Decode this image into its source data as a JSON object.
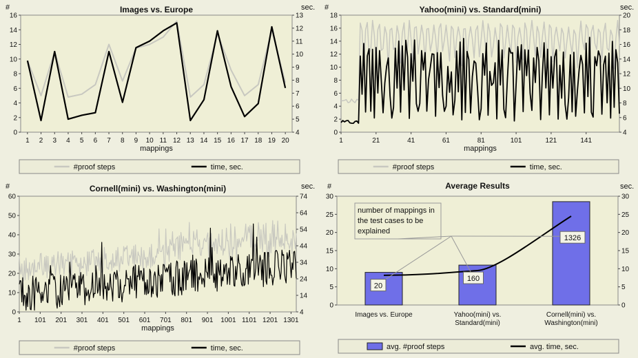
{
  "chart_data": [
    {
      "type": "line",
      "title": "Images vs. Europe",
      "xlabel": "mappings",
      "ylabel_left": "#",
      "ylabel_right": "sec.",
      "x": [
        1,
        2,
        3,
        4,
        5,
        6,
        7,
        8,
        9,
        10,
        11,
        12,
        13,
        14,
        15,
        16,
        17,
        18,
        19,
        20
      ],
      "ylim_left": [
        0,
        16
      ],
      "ylim_right": [
        4,
        13
      ],
      "yticks_left": [
        0,
        2,
        4,
        6,
        8,
        10,
        12,
        14,
        16
      ],
      "yticks_right": [
        4,
        5,
        6,
        7,
        8,
        9,
        10,
        11,
        12,
        13
      ],
      "xticks": [
        "1",
        "2",
        "3",
        "4",
        "5",
        "6",
        "7",
        "8",
        "9",
        "10",
        "11",
        "12",
        "13",
        "14",
        "15",
        "16",
        "17",
        "18",
        "19",
        "20"
      ],
      "series": [
        {
          "name": "#proof steps",
          "axis": "left",
          "color": "#c8c8c0",
          "values": [
            9.8,
            5.0,
            11.0,
            4.8,
            5.2,
            6.5,
            12.0,
            7.0,
            11.5,
            12.0,
            13.0,
            15.2,
            4.8,
            6.5,
            13.5,
            8.5,
            5.0,
            6.5,
            14.0,
            6.8
          ]
        },
        {
          "name": "time, sec.",
          "axis": "right",
          "color": "#000000",
          "values": [
            9.5,
            4.9,
            10.2,
            5.0,
            5.3,
            5.5,
            10.2,
            6.3,
            10.5,
            11.0,
            11.8,
            12.4,
            4.9,
            6.5,
            11.8,
            7.5,
            5.2,
            6.2,
            12.1,
            7.4
          ]
        }
      ],
      "legend": [
        "#proof steps",
        "time, sec."
      ]
    },
    {
      "type": "line",
      "title": "Yahoo(mini) vs. Standard(mini)",
      "xlabel": "mappings",
      "ylabel_left": "#",
      "ylabel_right": "sec.",
      "xlim": [
        1,
        160
      ],
      "ylim_left": [
        0,
        18
      ],
      "ylim_right": [
        4,
        20
      ],
      "yticks_left": [
        0,
        2,
        4,
        6,
        8,
        10,
        12,
        14,
        16,
        18
      ],
      "yticks_right": [
        4,
        6,
        8,
        10,
        12,
        14,
        16,
        18,
        20
      ],
      "xticks": [
        "1",
        "21",
        "41",
        "61",
        "81",
        "101",
        "121",
        "141"
      ],
      "series": [
        {
          "name": "#proof steps",
          "axis": "left",
          "color": "#c8c8c0"
        },
        {
          "name": "time, sec.",
          "axis": "right",
          "color": "#000000"
        }
      ],
      "legend": [
        "#proof steps",
        "time, sec."
      ]
    },
    {
      "type": "line",
      "title": "Cornell(mini) vs. Washington(mini)",
      "xlabel": "mappings",
      "ylabel_left": "#",
      "ylabel_right": "sec.",
      "xlim": [
        1,
        1326
      ],
      "ylim_left": [
        0,
        60
      ],
      "ylim_right": [
        4,
        74
      ],
      "yticks_left": [
        0,
        10,
        20,
        30,
        40,
        50,
        60
      ],
      "yticks_right": [
        4,
        14,
        24,
        34,
        44,
        54,
        64,
        74
      ],
      "xticks": [
        "1",
        "101",
        "201",
        "301",
        "401",
        "501",
        "601",
        "701",
        "801",
        "901",
        "1001",
        "1101",
        "1201",
        "1301"
      ],
      "series": [
        {
          "name": "#proof steps",
          "axis": "left",
          "color": "#c8c8c0"
        },
        {
          "name": "time, sec.",
          "axis": "right",
          "color": "#000000"
        }
      ],
      "legend": [
        "#proof steps",
        "time, sec."
      ]
    },
    {
      "type": "bar",
      "title": "Average Results",
      "ylabel_left": "#",
      "ylabel_right": "sec.",
      "categories": [
        [
          "Images vs. Europe"
        ],
        [
          "Yahoo(mini) vs.",
          "Standard(mini)"
        ],
        [
          "Cornell(mini) vs.",
          "Washington(mini)"
        ]
      ],
      "ylim_left": [
        0,
        30
      ],
      "ylim_right": [
        0,
        30
      ],
      "yticks_left": [
        0,
        5,
        10,
        15,
        20,
        25,
        30
      ],
      "yticks_right": [
        0,
        5,
        10,
        15,
        20,
        25,
        30
      ],
      "series": [
        {
          "name": "avg. #proof steps",
          "axis": "left",
          "color": "#6f6fe8",
          "values": [
            9,
            11,
            28.5
          ]
        },
        {
          "name": "avg. time, sec.",
          "axis": "right",
          "color": "#000000",
          "values": [
            8.2,
            9.5,
            24.5
          ]
        }
      ],
      "data_labels": [
        "20",
        "160",
        "1326"
      ],
      "annotation": [
        "number of mappings in",
        "the test cases to be",
        "explained"
      ],
      "legend": [
        "avg. #proof steps",
        "avg. time, sec."
      ]
    }
  ]
}
